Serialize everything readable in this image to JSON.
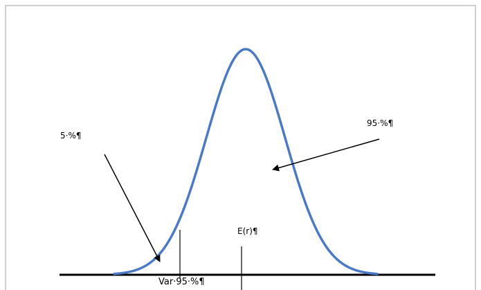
{
  "labels": {
    "five_pct": "5·%¶",
    "ninety_five_pct": "95·%¶",
    "expected_return": "E(r)¶",
    "var_95": "Var·95·%¶"
  },
  "colors": {
    "curve": "#4a79c8",
    "axis": "#000000",
    "border": "#cfcfcf"
  }
}
